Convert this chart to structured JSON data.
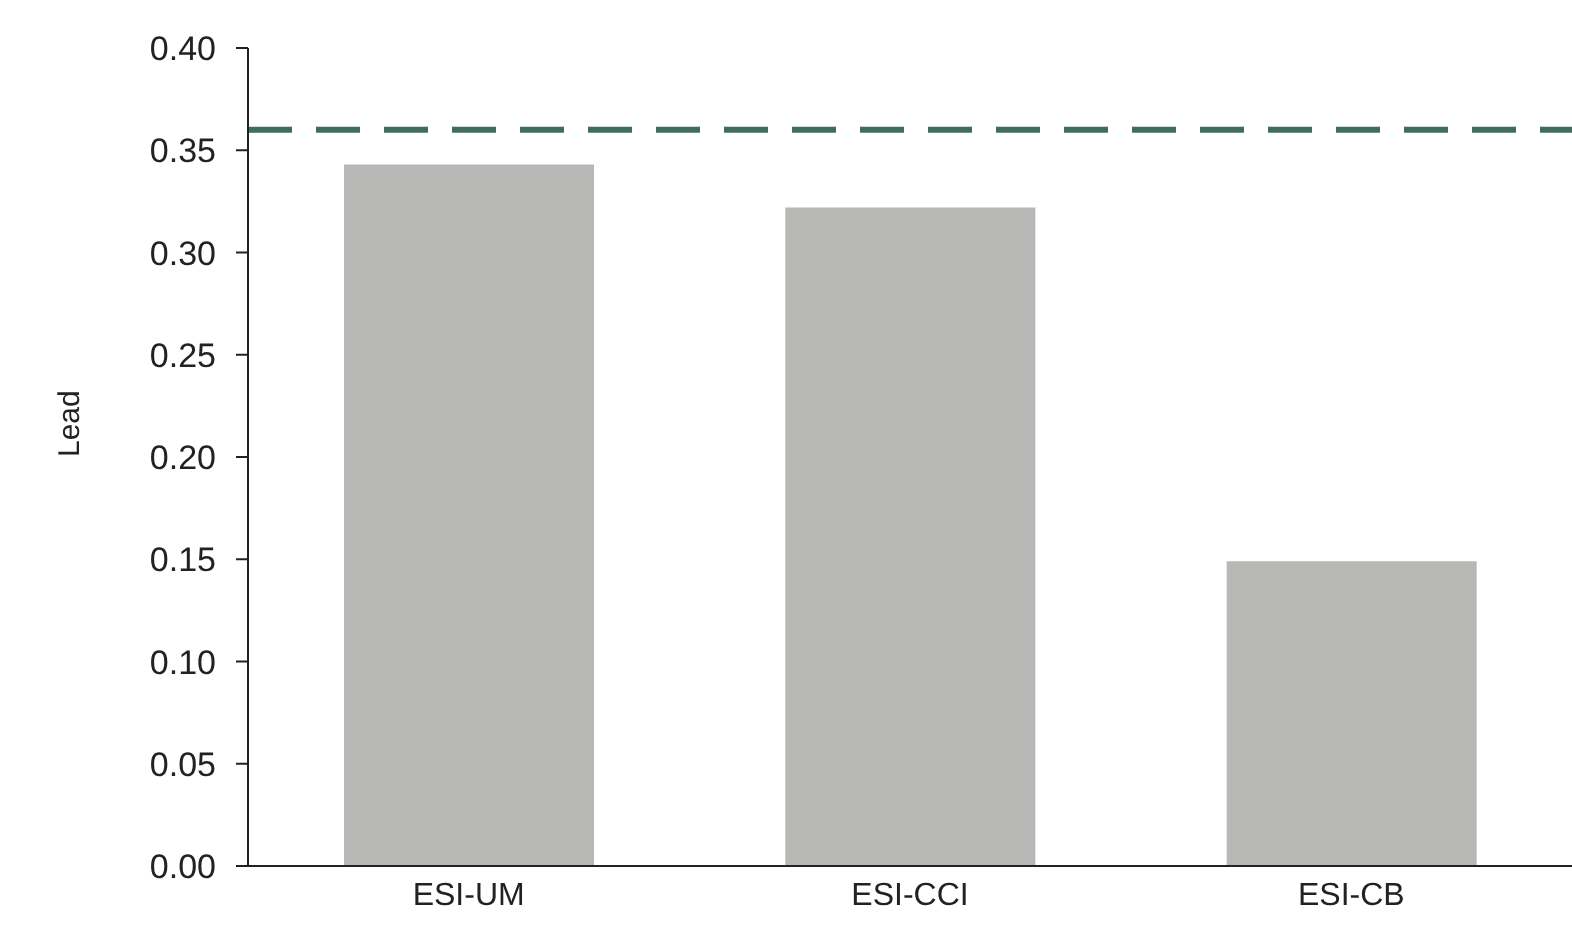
{
  "chart_data": {
    "type": "bar",
    "ylabel": "Lead",
    "categories": [
      "ESI-UM",
      "ESI-CCI",
      "ESI-CB"
    ],
    "values": [
      0.343,
      0.322,
      0.149
    ],
    "color": "#b7b7b5",
    "ylim": [
      0,
      0.4
    ],
    "yticks": [
      {
        "value": 0,
        "label": "0.00"
      },
      {
        "value": 0.05,
        "label": "0.05"
      },
      {
        "value": 0.1,
        "label": "0.10"
      },
      {
        "value": 0.15,
        "label": "0.15"
      },
      {
        "value": 0.2,
        "label": "0.20"
      },
      {
        "value": 0.25,
        "label": "0.25"
      },
      {
        "value": 0.3,
        "label": "0.30"
      },
      {
        "value": 0.35,
        "label": "0.35"
      },
      {
        "value": 0.4,
        "label": "0.40"
      }
    ],
    "ref_lines": [
      {
        "axis": "y",
        "value": 0.36,
        "color": "#3f6e5e",
        "line_style": "dashed"
      }
    ]
  }
}
